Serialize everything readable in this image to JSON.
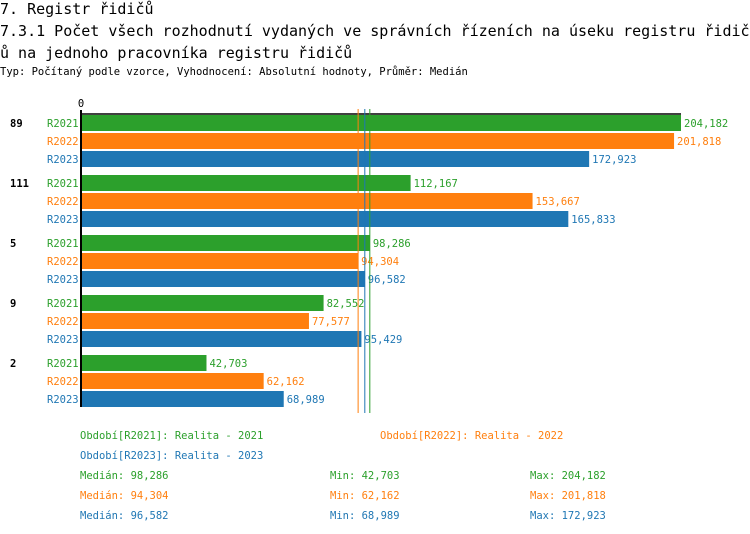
{
  "header": {
    "section": "7. Registr řidičů",
    "title": "7.3.1 Počet všech rozhodnutí vydaných ve správních řízeních na úseku registru řidičů na jednoho pracovníka registru řidičů",
    "subtitle": "Typ: Počítaný podle vzorce, Vyhodnocení: Absolutní hodnoty, Průměr: Medián"
  },
  "colors": {
    "R2021": "#2ca02c",
    "R2022": "#ff7f0e",
    "R2023": "#1f77b4"
  },
  "chart_data": {
    "type": "bar",
    "orientation": "horizontal",
    "axis_zero_label": "0",
    "xlim": [
      0,
      204182
    ],
    "categories": [
      "89",
      "111",
      "5",
      "9",
      "2"
    ],
    "series": [
      {
        "name": "R2021",
        "values": [
          204182,
          112167,
          98286,
          82552,
          42703
        ]
      },
      {
        "name": "R2022",
        "values": [
          201818,
          153667,
          94304,
          77577,
          62162
        ]
      },
      {
        "name": "R2023",
        "values": [
          172923,
          165833,
          96582,
          95429,
          68989
        ]
      }
    ],
    "median_lines": {
      "R2021": 98286,
      "R2022": 94304,
      "R2023": 96582
    },
    "legend": [
      {
        "key": "R2021",
        "label": "Období[R2021]: Realita - 2021"
      },
      {
        "key": "R2022",
        "label": "Období[R2022]: Realita - 2022"
      },
      {
        "key": "R2023",
        "label": "Období[R2023]: Realita - 2023"
      }
    ],
    "stats": [
      {
        "key": "R2021",
        "median": "Medián: 98,286",
        "min": "Min: 42,703",
        "max": "Max: 204,182"
      },
      {
        "key": "R2022",
        "median": "Medián: 94,304",
        "min": "Min: 62,162",
        "max": "Max: 201,818"
      },
      {
        "key": "R2023",
        "median": "Medián: 96,582",
        "min": "Min: 68,989",
        "max": "Max: 172,923"
      }
    ]
  }
}
